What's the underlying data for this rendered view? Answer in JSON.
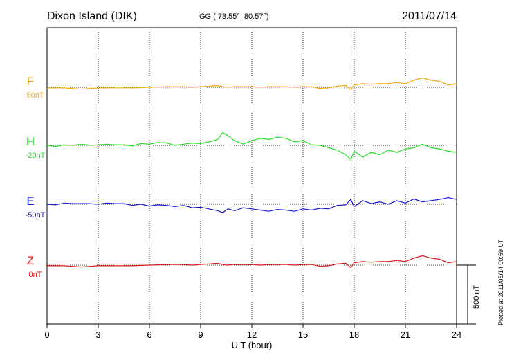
{
  "header": {
    "station": "Dixon Island (DIK)",
    "coords": "GG ( 73.55°,  80.57°)",
    "date": "2011/07/14"
  },
  "footer": {
    "plotted_note": "Plotted at 2011/08/14 00:59 UT"
  },
  "scale_bar": {
    "label": "500 nT",
    "value_nT": 500
  },
  "chart_data": {
    "type": "line",
    "title": "Dixon Island (DIK)",
    "xlabel": "U T (hour)",
    "ylabel": "",
    "xlim": [
      0,
      24
    ],
    "xticks": [
      "0",
      "3",
      "6",
      "9",
      "12",
      "15",
      "18",
      "21",
      "24"
    ],
    "grid": true,
    "series": [
      {
        "name": "F",
        "baseline": "50nT",
        "color": "#f0a800",
        "x": [
          0,
          1,
          2,
          2.5,
          3,
          4,
          5,
          6,
          7,
          8,
          8.5,
          9,
          9.5,
          10,
          10.5,
          11,
          11.5,
          12,
          12.5,
          13,
          13.5,
          14,
          14.5,
          15,
          15.5,
          16,
          16.5,
          17,
          17.5,
          17.8,
          18,
          18.5,
          19,
          19.5,
          20,
          20.5,
          21,
          21.5,
          22,
          22.5,
          23,
          23.5,
          24
        ],
        "y": [
          -5,
          -5,
          -15,
          -10,
          -5,
          -5,
          -5,
          0,
          5,
          5,
          0,
          5,
          10,
          15,
          0,
          5,
          5,
          5,
          0,
          5,
          5,
          5,
          0,
          5,
          5,
          -10,
          -5,
          10,
          15,
          -20,
          20,
          30,
          25,
          30,
          30,
          40,
          30,
          60,
          80,
          60,
          50,
          20,
          30
        ]
      },
      {
        "name": "H",
        "baseline": "-20nT",
        "color": "#22e022",
        "x": [
          0,
          0.5,
          1,
          1.5,
          2,
          2.5,
          3,
          3.5,
          4,
          4.5,
          5,
          5.5,
          6,
          6.5,
          7,
          7.5,
          8,
          8.5,
          9,
          9.5,
          10,
          10.3,
          10.6,
          11,
          11.5,
          12,
          12.5,
          13,
          13.5,
          14,
          14.5,
          15,
          15.5,
          16,
          16.5,
          17,
          17.5,
          17.8,
          18,
          18.5,
          19,
          19.5,
          20,
          20.5,
          21,
          21.5,
          22,
          22.5,
          23,
          23.5,
          24
        ],
        "y": [
          0,
          -10,
          5,
          0,
          10,
          0,
          5,
          10,
          5,
          5,
          -5,
          15,
          10,
          25,
          20,
          0,
          10,
          20,
          15,
          30,
          50,
          110,
          80,
          40,
          10,
          40,
          60,
          50,
          70,
          60,
          30,
          40,
          5,
          0,
          -20,
          -40,
          -80,
          -120,
          -50,
          -100,
          -60,
          -80,
          -40,
          -60,
          -30,
          -20,
          10,
          -20,
          -30,
          -50,
          -60
        ]
      },
      {
        "name": "E",
        "baseline": "-50nT",
        "color": "#1818d8",
        "x": [
          0,
          0.5,
          1,
          1.5,
          2,
          2.5,
          3,
          3.5,
          4,
          4.5,
          5,
          5.5,
          6,
          6.5,
          7,
          7.5,
          8,
          8.5,
          9,
          9.5,
          10,
          10.3,
          10.6,
          11,
          11.5,
          12,
          12.5,
          13,
          13.5,
          14,
          14.5,
          15,
          15.5,
          16,
          16.5,
          17,
          17.5,
          17.8,
          18,
          18.5,
          19,
          19.5,
          20,
          20.5,
          21,
          21.5,
          22,
          22.5,
          23,
          23.5,
          24
        ],
        "y": [
          0,
          -5,
          10,
          5,
          5,
          5,
          0,
          10,
          5,
          5,
          -10,
          0,
          -15,
          -5,
          -10,
          -20,
          -10,
          -30,
          -25,
          -40,
          -55,
          -70,
          -40,
          -55,
          -30,
          -40,
          -50,
          -60,
          -45,
          -50,
          -60,
          -40,
          -50,
          -35,
          -40,
          -10,
          -5,
          40,
          -20,
          30,
          5,
          20,
          0,
          30,
          10,
          45,
          20,
          30,
          40,
          55,
          40
        ]
      },
      {
        "name": "Z",
        "baseline": "0nT",
        "color": "#e01818",
        "x": [
          0,
          1,
          2,
          2.5,
          3,
          4,
          5,
          6,
          7,
          8,
          8.5,
          9,
          9.5,
          10,
          10.5,
          11,
          11.5,
          12,
          12.5,
          13,
          13.5,
          14,
          14.5,
          15,
          15.5,
          16,
          16.5,
          17,
          17.5,
          17.8,
          18,
          18.5,
          19,
          19.5,
          20,
          20.5,
          21,
          21.5,
          22,
          22.5,
          23,
          23.5,
          24
        ],
        "y": [
          -5,
          -5,
          -15,
          -10,
          -5,
          -5,
          -5,
          0,
          5,
          5,
          0,
          5,
          10,
          15,
          0,
          5,
          5,
          5,
          0,
          5,
          5,
          5,
          0,
          5,
          5,
          -10,
          -5,
          10,
          15,
          -20,
          20,
          30,
          25,
          30,
          30,
          40,
          30,
          60,
          80,
          60,
          50,
          20,
          30
        ]
      }
    ]
  }
}
